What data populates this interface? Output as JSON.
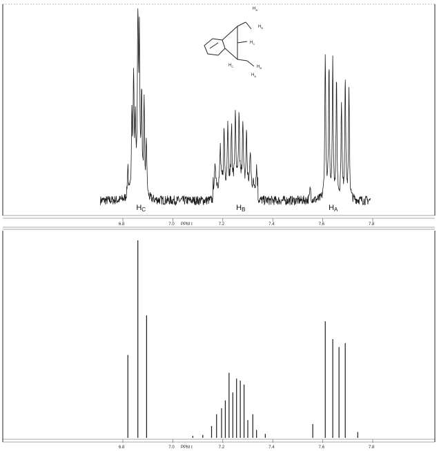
{
  "chart_data": [
    {
      "type": "line",
      "panel": "experimental",
      "axis_unit": "PPM τ",
      "xlim": [
        6.58,
        7.85
      ],
      "ticks": [
        {
          "v": 6.8,
          "label": "6.8"
        },
        {
          "v": 7.0,
          "label": "7.0"
        },
        {
          "v": 7.2,
          "label": "7.2"
        },
        {
          "v": 7.4,
          "label": "7.4"
        },
        {
          "v": 7.6,
          "label": "7.6"
        },
        {
          "v": 7.8,
          "label": "7.8"
        }
      ],
      "labels": [
        {
          "text": "H",
          "sub": "C",
          "x": 6.87
        },
        {
          "text": "H",
          "sub": "B",
          "x": 7.27
        },
        {
          "text": "H",
          "sub": "A",
          "x": 7.64
        }
      ],
      "peaks": [
        {
          "x": 6.82,
          "h": 0.18
        },
        {
          "x": 6.836,
          "h": 0.45
        },
        {
          "x": 6.843,
          "h": 0.62
        },
        {
          "x": 6.85,
          "h": 0.38
        },
        {
          "x": 6.86,
          "h": 1.0
        },
        {
          "x": 6.866,
          "h": 0.82
        },
        {
          "x": 6.875,
          "h": 0.55
        },
        {
          "x": 6.885,
          "h": 0.48
        },
        {
          "x": 6.894,
          "h": 0.3
        },
        {
          "x": 7.17,
          "h": 0.12
        },
        {
          "x": 7.19,
          "h": 0.2
        },
        {
          "x": 7.205,
          "h": 0.3
        },
        {
          "x": 7.22,
          "h": 0.36
        },
        {
          "x": 7.235,
          "h": 0.32
        },
        {
          "x": 7.25,
          "h": 0.4
        },
        {
          "x": 7.265,
          "h": 0.38
        },
        {
          "x": 7.28,
          "h": 0.36
        },
        {
          "x": 7.295,
          "h": 0.28
        },
        {
          "x": 7.31,
          "h": 0.18
        },
        {
          "x": 7.335,
          "h": 0.1
        },
        {
          "x": 7.55,
          "h": 0.07
        },
        {
          "x": 7.61,
          "h": 0.78
        },
        {
          "x": 7.625,
          "h": 0.7
        },
        {
          "x": 7.64,
          "h": 0.72
        },
        {
          "x": 7.655,
          "h": 0.62
        },
        {
          "x": 7.675,
          "h": 0.52
        },
        {
          "x": 7.69,
          "h": 0.66
        },
        {
          "x": 7.705,
          "h": 0.58
        }
      ],
      "noise_amplitude": 0.025
    },
    {
      "type": "bar",
      "panel": "calculated",
      "axis_unit": "PPM τ",
      "xlim": [
        6.58,
        7.85
      ],
      "ticks": [
        {
          "v": 6.8,
          "label": "6.8"
        },
        {
          "v": 7.0,
          "label": "7.0"
        },
        {
          "v": 7.2,
          "label": "7.2"
        },
        {
          "v": 7.4,
          "label": "7.4"
        },
        {
          "v": 7.6,
          "label": "7.6"
        },
        {
          "v": 7.8,
          "label": "7.8"
        }
      ],
      "lines": [
        {
          "x": 6.82,
          "h": 0.42
        },
        {
          "x": 6.86,
          "h": 1.0
        },
        {
          "x": 6.895,
          "h": 0.62
        },
        {
          "x": 7.08,
          "h": 0.01
        },
        {
          "x": 7.12,
          "h": 0.015
        },
        {
          "x": 7.155,
          "h": 0.06
        },
        {
          "x": 7.175,
          "h": 0.12
        },
        {
          "x": 7.195,
          "h": 0.15
        },
        {
          "x": 7.21,
          "h": 0.19
        },
        {
          "x": 7.225,
          "h": 0.33
        },
        {
          "x": 7.24,
          "h": 0.23
        },
        {
          "x": 7.255,
          "h": 0.3
        },
        {
          "x": 7.27,
          "h": 0.29
        },
        {
          "x": 7.285,
          "h": 0.27
        },
        {
          "x": 7.3,
          "h": 0.09
        },
        {
          "x": 7.32,
          "h": 0.12
        },
        {
          "x": 7.335,
          "h": 0.04
        },
        {
          "x": 7.37,
          "h": 0.02
        },
        {
          "x": 7.56,
          "h": 0.07
        },
        {
          "x": 7.61,
          "h": 0.59
        },
        {
          "x": 7.64,
          "h": 0.5
        },
        {
          "x": 7.665,
          "h": 0.46
        },
        {
          "x": 7.69,
          "h": 0.48
        },
        {
          "x": 7.74,
          "h": 0.03
        }
      ]
    }
  ],
  "molecule": {
    "labels": [
      "H",
      "A",
      "H",
      "B",
      "H",
      "C",
      "H",
      "C",
      "H",
      "B",
      "H",
      "A"
    ]
  }
}
